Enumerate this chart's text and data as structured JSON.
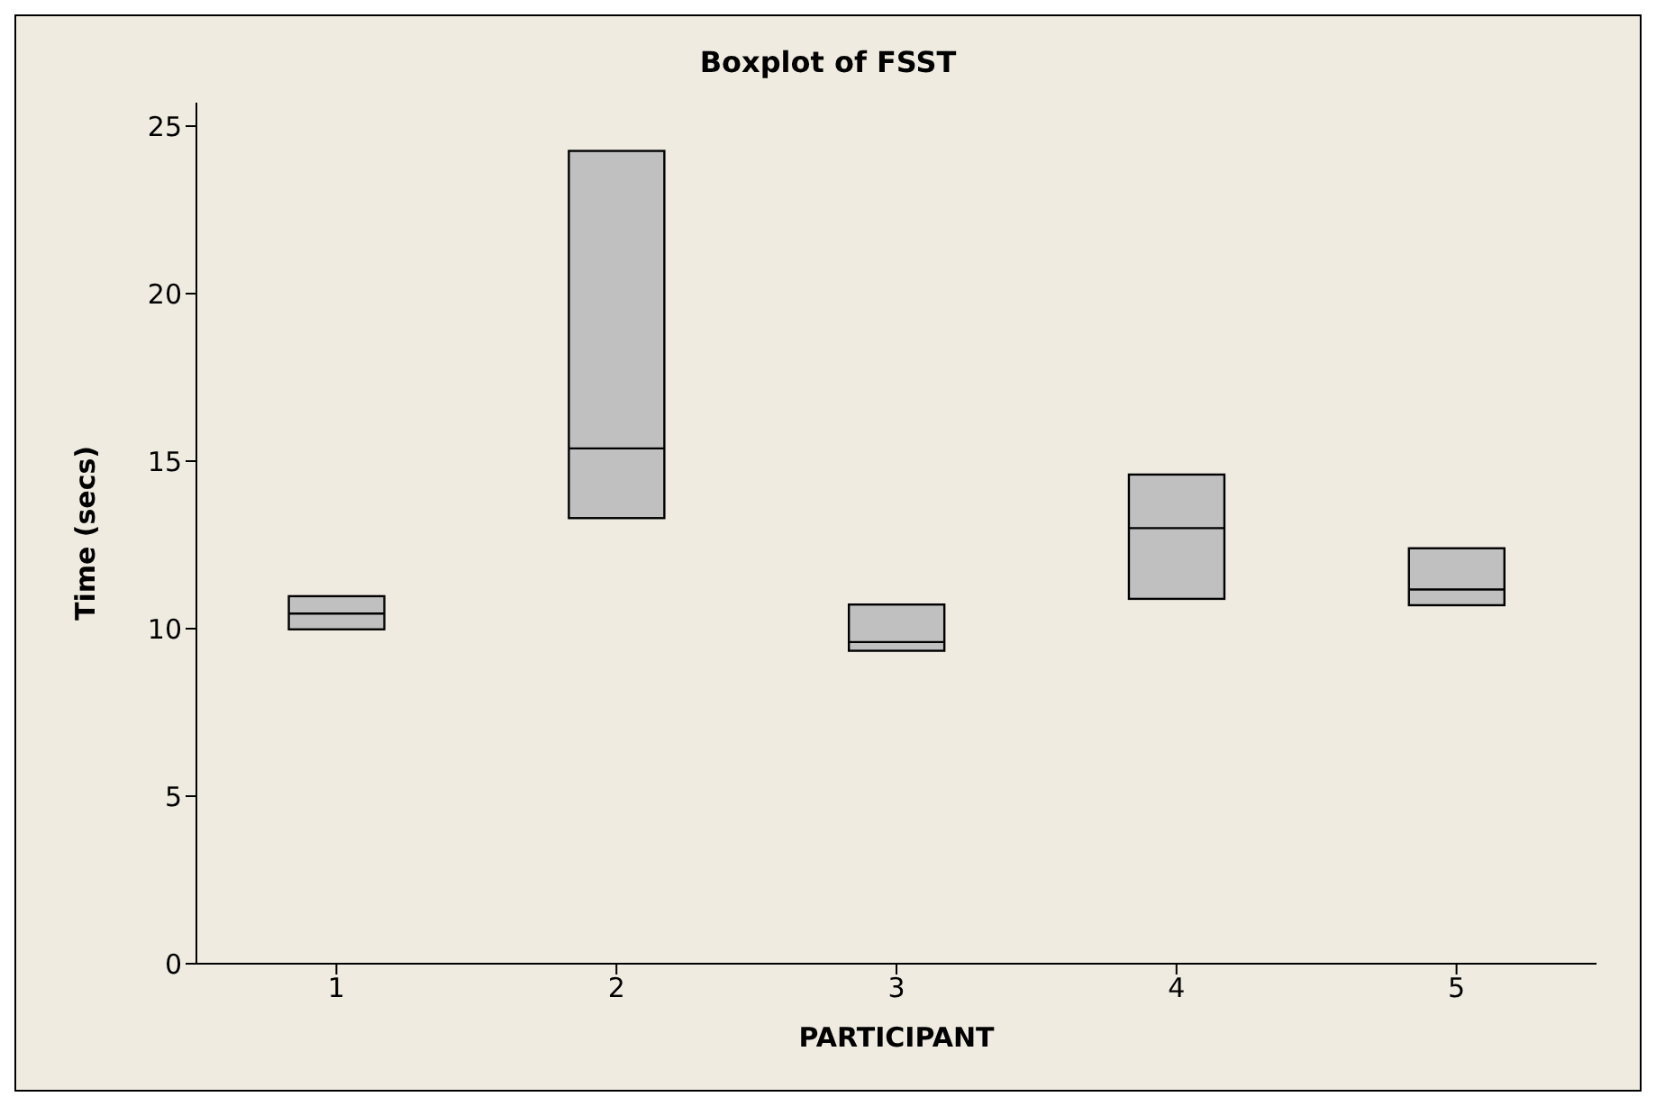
{
  "chart_data": {
    "type": "box",
    "title": "Boxplot of FSST",
    "xlabel": "PARTICIPANT",
    "ylabel": "Time (secs)",
    "categories": [
      "1",
      "2",
      "3",
      "4",
      "5"
    ],
    "color": "#c0c0c0",
    "ylim": [
      0,
      25.7
    ],
    "yticks": [
      0,
      5,
      10,
      15,
      20,
      25
    ],
    "grid": false,
    "legend": false,
    "boxes": [
      {
        "low": 9.98,
        "q1": 9.98,
        "median": 10.45,
        "q3": 10.97,
        "high": 10.97
      },
      {
        "low": 13.3,
        "q1": 13.3,
        "median": 15.38,
        "q3": 24.26,
        "high": 24.26
      },
      {
        "low": 9.34,
        "q1": 9.34,
        "median": 9.6,
        "q3": 10.72,
        "high": 10.72
      },
      {
        "low": 10.89,
        "q1": 10.89,
        "median": 13.0,
        "q3": 14.6,
        "high": 14.6
      },
      {
        "low": 10.7,
        "q1": 10.7,
        "median": 11.17,
        "q3": 12.4,
        "high": 12.4
      }
    ]
  }
}
